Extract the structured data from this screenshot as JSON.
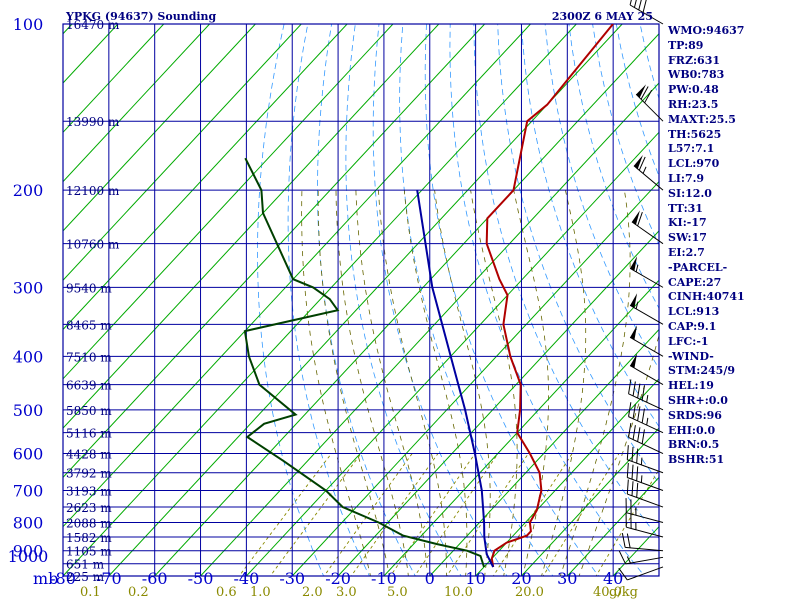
{
  "header": {
    "title": "YPKG (94637) Sounding",
    "time": "2300Z  6 MAY 25"
  },
  "indices": [
    "WMO:94637",
    "TP:89",
    "FRZ:631",
    "WB0:783",
    "PW:0.48",
    "RH:23.5",
    "MAXT:25.5",
    "TH:5625",
    "L57:7.1",
    "LCL:970",
    "LI:7.9",
    "SI:12.0",
    "TT:31",
    "KI:-17",
    "SW:17",
    "EI:2.7",
    "-PARCEL-",
    "CAPE:27",
    "CINH:40741",
    "LCL:913",
    "CAP:9.1",
    "LFC:-1",
    "-WIND-",
    "STM:245/9",
    "HEL:19",
    "SHR+:0.0",
    "SRDS:96",
    "EHI:0.0",
    "BRN:0.5",
    "BSHR:51"
  ],
  "chart_data": {
    "type": "line",
    "title": "YPKG (94637) Sounding",
    "subtitle": "2300Z  6 MAY 25",
    "xlabel": "",
    "ylabel": "mb",
    "x_unit": "deg C (skewed)",
    "y_scale": "log-pressure",
    "xlim": [
      -80,
      50
    ],
    "ylim": [
      1000,
      100
    ],
    "pressure_ticks": [
      "100",
      "200",
      "300",
      "400",
      "500",
      "600",
      "700",
      "800",
      "900",
      "1000"
    ],
    "pressure_unit_label": "mb",
    "temperature_ticks": [
      "-80",
      "-70",
      "-60",
      "-50",
      "-40",
      "-30",
      "-20",
      "-10",
      "0",
      "10",
      "20",
      "30",
      "40"
    ],
    "mixing_ratio_labels": [
      "0.1",
      "0.2",
      "0.6",
      "1.0",
      "2.0",
      "3.0",
      "5.0",
      "10.0",
      "20.0",
      "40.0",
      "g/kg"
    ],
    "height_labels": [
      {
        "p": 100,
        "label": "16470 m"
      },
      {
        "p": 150,
        "label": "13990 m"
      },
      {
        "p": 200,
        "label": "12100 m"
      },
      {
        "p": 250,
        "label": "10760 m"
      },
      {
        "p": 300,
        "label": "9540 m"
      },
      {
        "p": 350,
        "label": "8465 m"
      },
      {
        "p": 400,
        "label": "7510 m"
      },
      {
        "p": 450,
        "label": "6639 m"
      },
      {
        "p": 500,
        "label": "5850 m"
      },
      {
        "p": 550,
        "label": "5116 m"
      },
      {
        "p": 600,
        "label": "4428 m"
      },
      {
        "p": 650,
        "label": "3792 m"
      },
      {
        "p": 700,
        "label": "3193 m"
      },
      {
        "p": 750,
        "label": "2623 m"
      },
      {
        "p": 800,
        "label": "2088 m"
      },
      {
        "p": 850,
        "label": "1582 m"
      },
      {
        "p": 900,
        "label": "1105 m"
      },
      {
        "p": 950,
        "label": "651 m"
      },
      {
        "p": 1000,
        "label": "225 m"
      }
    ],
    "series": [
      {
        "key": "temperature",
        "color": "#b00000",
        "points": [
          [
            963,
            12
          ],
          [
            930,
            10
          ],
          [
            900,
            9
          ],
          [
            870,
            10
          ],
          [
            845,
            13
          ],
          [
            830,
            13
          ],
          [
            800,
            11
          ],
          [
            760,
            10
          ],
          [
            700,
            7
          ],
          [
            650,
            3
          ],
          [
            600,
            -3
          ],
          [
            550,
            -10
          ],
          [
            500,
            -14
          ],
          [
            450,
            -19
          ],
          [
            400,
            -27
          ],
          [
            350,
            -35
          ],
          [
            310,
            -40
          ],
          [
            290,
            -45
          ],
          [
            250,
            -55
          ],
          [
            225,
            -60
          ],
          [
            200,
            -60
          ],
          [
            150,
            -71
          ],
          [
            140,
            -70
          ],
          [
            100,
            -72
          ]
        ]
      },
      {
        "key": "dewpoint",
        "color": "#004000",
        "points": [
          [
            963,
            10
          ],
          [
            920,
            7
          ],
          [
            900,
            3
          ],
          [
            875,
            -5
          ],
          [
            845,
            -14
          ],
          [
            800,
            -22
          ],
          [
            750,
            -33
          ],
          [
            700,
            -40
          ],
          [
            620,
            -55
          ],
          [
            560,
            -68
          ],
          [
            530,
            -67
          ],
          [
            510,
            -62
          ],
          [
            450,
            -76
          ],
          [
            400,
            -84
          ],
          [
            360,
            -90
          ],
          [
            330,
            -74
          ],
          [
            315,
            -78
          ],
          [
            300,
            -84
          ],
          [
            290,
            -90
          ],
          [
            220,
            -110
          ],
          [
            200,
            -115
          ],
          [
            175,
            -125
          ]
        ]
      },
      {
        "key": "parcel",
        "color": "#0000a0",
        "points": [
          [
            963,
            12
          ],
          [
            913,
            8
          ],
          [
            850,
            4
          ],
          [
            800,
            1
          ],
          [
            700,
            -6
          ],
          [
            600,
            -15
          ],
          [
            500,
            -26
          ],
          [
            400,
            -40
          ],
          [
            300,
            -58
          ],
          [
            200,
            -81
          ]
        ]
      }
    ],
    "winds": [
      {
        "p": 963,
        "dir": 250,
        "spd": 10
      },
      {
        "p": 925,
        "dir": 260,
        "spd": 15
      },
      {
        "p": 900,
        "dir": 275,
        "spd": 20
      },
      {
        "p": 850,
        "dir": 285,
        "spd": 25
      },
      {
        "p": 800,
        "dir": 285,
        "spd": 25
      },
      {
        "p": 750,
        "dir": 290,
        "spd": 30
      },
      {
        "p": 700,
        "dir": 290,
        "spd": 35
      },
      {
        "p": 650,
        "dir": 290,
        "spd": 35
      },
      {
        "p": 600,
        "dir": 295,
        "spd": 40
      },
      {
        "p": 550,
        "dir": 295,
        "spd": 45
      },
      {
        "p": 500,
        "dir": 295,
        "spd": 45
      },
      {
        "p": 450,
        "dir": 300,
        "spd": 50
      },
      {
        "p": 400,
        "dir": 300,
        "spd": 50
      },
      {
        "p": 350,
        "dir": 300,
        "spd": 55
      },
      {
        "p": 300,
        "dir": 300,
        "spd": 55
      },
      {
        "p": 250,
        "dir": 305,
        "spd": 60
      },
      {
        "p": 200,
        "dir": 310,
        "spd": 65
      },
      {
        "p": 150,
        "dir": 315,
        "spd": 70
      },
      {
        "p": 100,
        "dir": 300,
        "spd": 40
      }
    ],
    "grid": true,
    "colors": {
      "frame": "#0000a0",
      "isotherm": "#00aa00",
      "dry_adiabat": "#3399ff",
      "moist_adiabat": "#666600",
      "mixing_ratio": "#8a8a00",
      "wind_barb": "#000000"
    }
  }
}
